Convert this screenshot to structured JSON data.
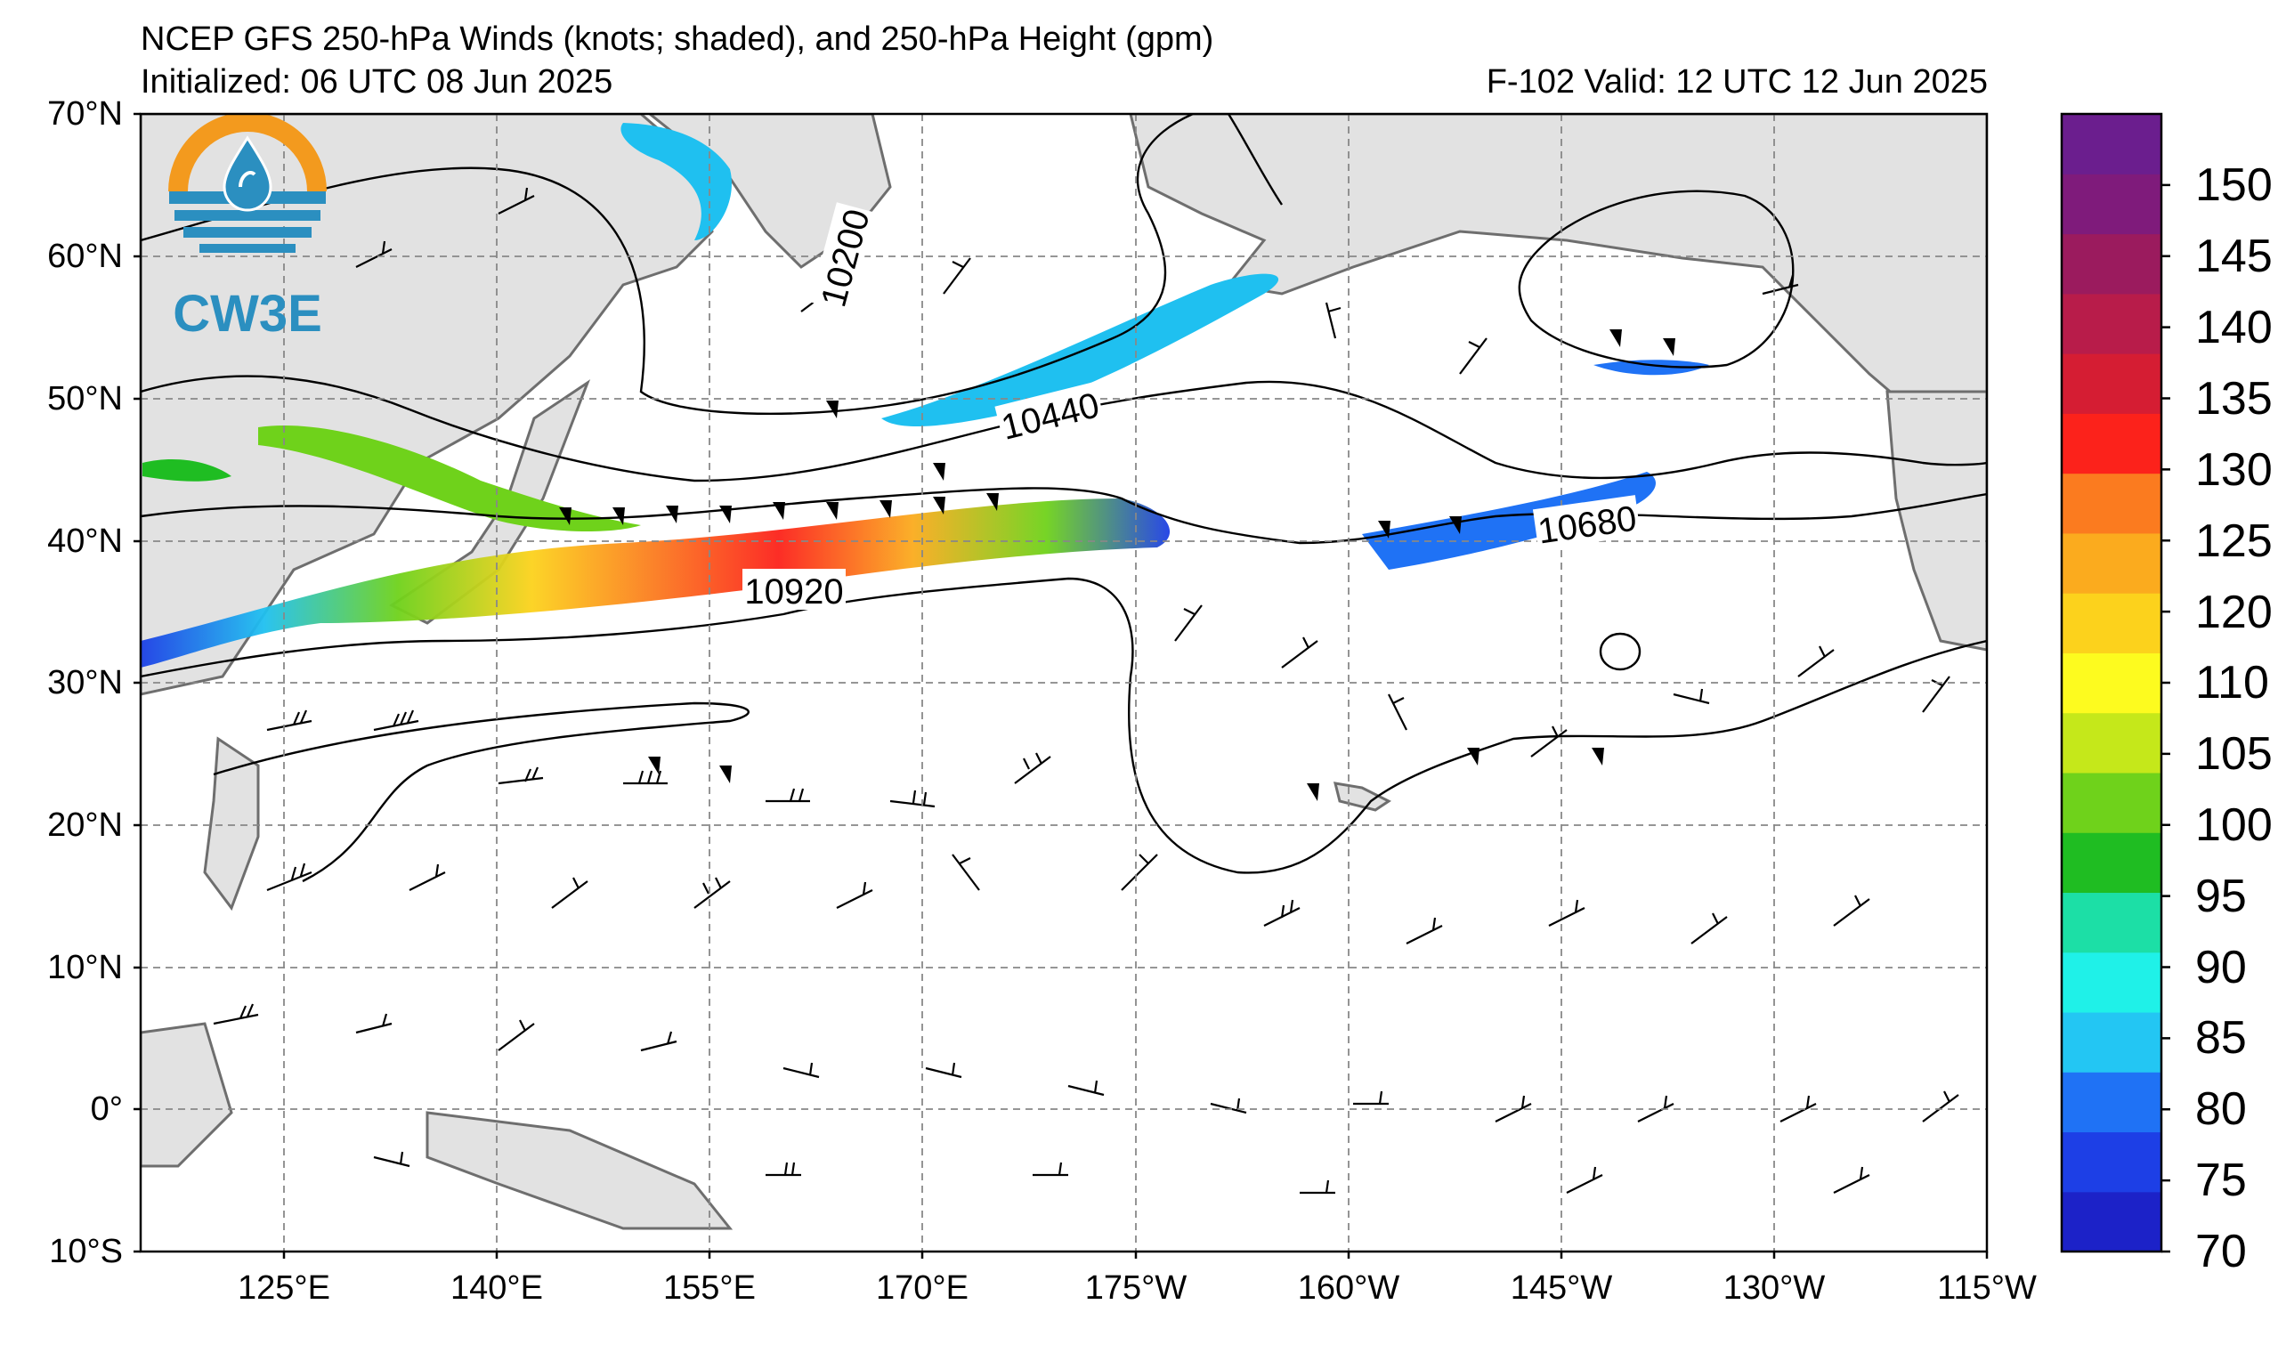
{
  "header": {
    "title": "NCEP GFS 250-hPa Winds (knots; shaded), and 250-hPa Height (gpm)",
    "initialized": "Initialized: 06 UTC 08 Jun 2025",
    "forecast": "F-102  Valid: 12 UTC 12 Jun 2025"
  },
  "logo": {
    "text": "CW3E",
    "ring_color": "#f39a1e",
    "drop_color": "#2b8fc0"
  },
  "map": {
    "projection": "cylindrical",
    "lon_range_east": [
      115,
      245
    ],
    "lat_range": [
      -10,
      70
    ],
    "land_color": "#e2e2e2",
    "gridlines": "dashed gray",
    "lat_ticks": [
      "70°N",
      "60°N",
      "50°N",
      "40°N",
      "30°N",
      "20°N",
      "10°N",
      "0°",
      "10°S"
    ],
    "lon_ticks": [
      "125°E",
      "140°E",
      "155°E",
      "170°E",
      "175°W",
      "160°W",
      "145°W",
      "130°W",
      "115°W"
    ],
    "height_contour_labels": [
      "10200",
      "10440",
      "10680",
      "10920"
    ]
  },
  "colorbar": {
    "units": "knots",
    "levels": [
      "150",
      "145",
      "140",
      "135",
      "130",
      "125",
      "120",
      "110",
      "105",
      "100",
      "95",
      "90",
      "85",
      "80",
      "75",
      "70"
    ],
    "colors": [
      "#1c22c8",
      "#1d3fe6",
      "#1f72f5",
      "#23c6f3",
      "#1ff1e8",
      "#1cdfa6",
      "#1fbd22",
      "#6fd21b",
      "#c5e81a",
      "#fdfb1f",
      "#fcd21c",
      "#fbab1e",
      "#fb7b1f",
      "#fc221b",
      "#d51d33",
      "#b81c4a",
      "#9b1b5e",
      "#7f1b7b",
      "#6b1e8e"
    ]
  }
}
